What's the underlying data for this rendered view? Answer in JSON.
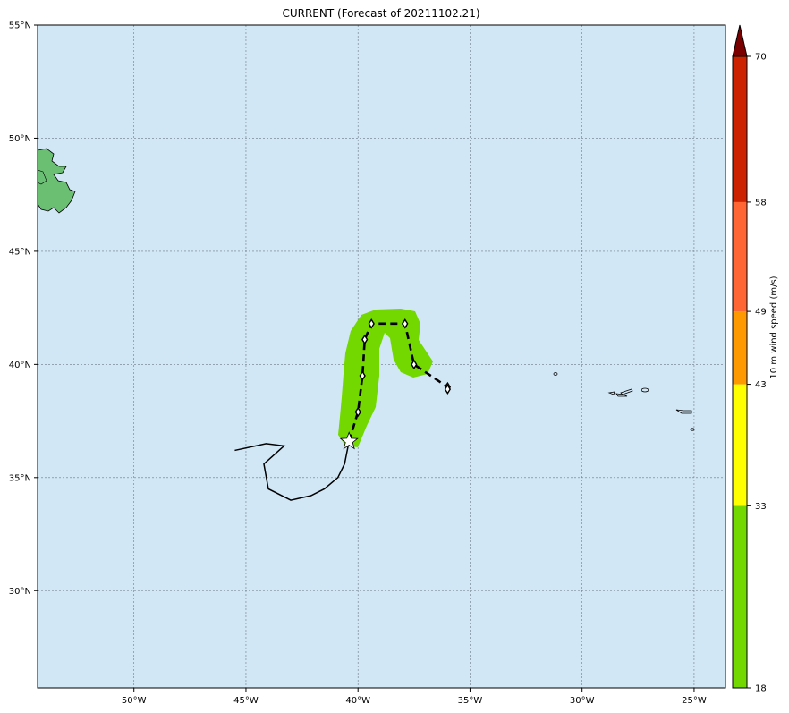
{
  "title": "CURRENT (Forecast of 20211102.21)",
  "map": {
    "lon_range": [
      -54.3,
      -23.6
    ],
    "lat_range": [
      25.7,
      55.0
    ],
    "lon_ticks": [
      {
        "value": -50,
        "label": "50°W"
      },
      {
        "value": -45,
        "label": "45°W"
      },
      {
        "value": -40,
        "label": "40°W"
      },
      {
        "value": -35,
        "label": "35°W"
      },
      {
        "value": -30,
        "label": "30°W"
      },
      {
        "value": -25,
        "label": "25°W"
      }
    ],
    "lat_ticks": [
      {
        "value": 55,
        "label": "55°N"
      },
      {
        "value": 50,
        "label": "50°N"
      },
      {
        "value": 45,
        "label": "45°N"
      },
      {
        "value": 40,
        "label": "40°N"
      },
      {
        "value": 35,
        "label": "35°N"
      },
      {
        "value": 30,
        "label": "30°N"
      }
    ],
    "ocean_color": "#d1e7f5",
    "land_color": "#6abf73",
    "gridlines": true
  },
  "storm": {
    "past_track": [
      [
        -45.5,
        36.2
      ],
      [
        -44.1,
        36.5
      ],
      [
        -43.3,
        36.4
      ],
      [
        -44.2,
        35.6
      ],
      [
        -44.0,
        34.5
      ],
      [
        -43.0,
        34.0
      ],
      [
        -42.1,
        34.2
      ],
      [
        -41.5,
        34.5
      ],
      [
        -40.9,
        35.0
      ],
      [
        -40.6,
        35.6
      ],
      [
        -40.5,
        36.1
      ],
      [
        -40.4,
        36.6
      ]
    ],
    "current_position": [
      -40.4,
      36.6
    ],
    "forecast_points": [
      [
        -40.4,
        36.6
      ],
      [
        -40.0,
        37.9
      ],
      [
        -39.8,
        39.5
      ],
      [
        -39.7,
        41.1
      ],
      [
        -39.4,
        41.8
      ],
      [
        -37.9,
        41.8
      ],
      [
        -37.5,
        40.0
      ],
      [
        -36.0,
        39.0
      ],
      [
        -36.0,
        38.9
      ]
    ],
    "wind_swath_color": "#72d800"
  },
  "colorbar": {
    "label": "10 m wind speed (m/s)",
    "ticks": [
      "18",
      "33",
      "43",
      "49",
      "58",
      "70"
    ],
    "bins": [
      {
        "from": 18,
        "to": 33,
        "color": "#72d800"
      },
      {
        "from": 33,
        "to": 43,
        "color": "#ffff00"
      },
      {
        "from": 43,
        "to": 49,
        "color": "#ff9900"
      },
      {
        "from": 49,
        "to": 58,
        "color": "#ff6633"
      },
      {
        "from": 58,
        "to": 70,
        "color": "#cc2200"
      }
    ],
    "extend_color": "#7a0000"
  }
}
